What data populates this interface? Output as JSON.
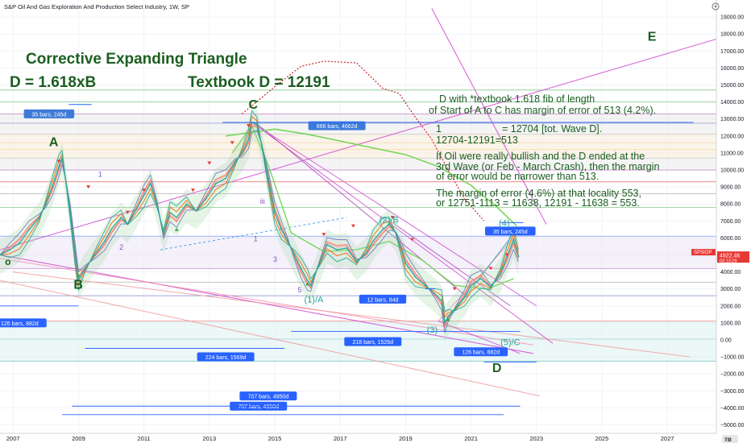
{
  "chart_data": {
    "type": "line",
    "title": "S&P Oil And Gas Exploration And Production Select Industry, 1W, SP",
    "y_axis": {
      "ylim": [
        -5500,
        20000
      ],
      "ticks": [
        -5000,
        -4000,
        -3000,
        -2000,
        -1000,
        0,
        1000,
        2000,
        3000,
        4000,
        5000,
        6000,
        7000,
        8000,
        9000,
        10000,
        11000,
        12000,
        13000,
        14000,
        15000,
        16000,
        17000,
        18000,
        19000
      ],
      "tick_labels": [
        "−5000.00",
        "−4000.00",
        "−3000.00",
        "−2000.00",
        "−1000.00",
        "0.00",
        "1000.00",
        "2000.00",
        "3000.00",
        "4000.00",
        "5000.00",
        "6000.00",
        "7000.00",
        "8000.00",
        "9000.00",
        "10000.00",
        "11000.00",
        "12000.00",
        "13000.00",
        "14000.00",
        "15000.00",
        "16000.00",
        "17000.00",
        "18000.00",
        "19000.00"
      ]
    },
    "x_axis": {
      "xlim": [
        2006.6,
        2028.5
      ],
      "ticks": [
        2007,
        2009,
        2011,
        2013,
        2015,
        2017,
        2019,
        2021,
        2023,
        2025,
        2027
      ],
      "tick_labels": [
        "2007",
        "2009",
        "2011",
        "2013",
        "2015",
        "2017",
        "2019",
        "2021",
        "2023",
        "2025",
        "2027"
      ]
    },
    "grid": true,
    "series": [
      {
        "color": "#26a69a",
        "x": [
          2006.6,
          2006.9,
          2007.2,
          2007.5,
          2007.8,
          2008.0,
          2008.2,
          2008.4,
          2008.5,
          2008.6,
          2008.75,
          2008.9,
          2009.0,
          2009.2,
          2009.5,
          2009.8,
          2010.0,
          2010.3,
          2010.5,
          2010.8,
          2011.0,
          2011.2,
          2011.4,
          2011.6,
          2011.8,
          2012.0,
          2012.3,
          2012.6,
          2012.9,
          2013.2,
          2013.5,
          2013.8,
          2014.0,
          2014.2,
          2014.3,
          2014.45,
          2014.6,
          2014.8,
          2015.0,
          2015.2,
          2015.4,
          2015.6,
          2015.8,
          2016.0,
          2016.1,
          2016.3,
          2016.6,
          2016.9,
          2017.2,
          2017.5,
          2017.8,
          2018.0,
          2018.3,
          2018.5,
          2018.7,
          2018.9,
          2019.0,
          2019.3,
          2019.6,
          2019.9,
          2020.1,
          2020.2,
          2020.3,
          2020.5,
          2020.8,
          2021.0,
          2021.3,
          2021.6,
          2021.9,
          2022.1,
          2022.3,
          2022.45
        ],
        "y": [
          5000,
          5300,
          5700,
          6500,
          7200,
          8000,
          9000,
          10200,
          10700,
          9500,
          7500,
          5000,
          3500,
          4200,
          5000,
          5800,
          6500,
          7200,
          6800,
          7800,
          8500,
          9200,
          8000,
          6200,
          7500,
          7200,
          8000,
          7600,
          8300,
          9200,
          9500,
          10500,
          11000,
          11800,
          12800,
          12700,
          11500,
          9500,
          7500,
          6500,
          5800,
          5000,
          4200,
          3500,
          3200,
          4200,
          5600,
          5300,
          5400,
          4600,
          5100,
          5800,
          6500,
          6800,
          6300,
          5200,
          4500,
          3700,
          3200,
          2700,
          2300,
          1000,
          1400,
          1800,
          2500,
          3200,
          3600,
          3100,
          3900,
          4900,
          5900,
          4922
        ]
      }
    ],
    "current_price": "4922.46",
    "price_countdown": "03:13:29",
    "symbol_tag": "SPSIOP",
    "wave_labels": [
      "o",
      "A",
      "B",
      "C",
      "D",
      "E",
      "1",
      "2",
      "iii",
      "1",
      "3",
      "5",
      "(1)/A",
      "(2)/B",
      "(3)",
      "(4)",
      "(5)/C"
    ],
    "annotations": {
      "title_line": "Corrective Expanding Triangle",
      "left_line": "D = 1.618xB",
      "right_line": "Textbook D = 12191",
      "note1a": "D with *textbook 1.618 fib of length",
      "note1b": "of Start of A to C has margin of error of 513 (4.2%).",
      "note2a_pre": "1",
      "note2a_post": "= 12704 [tot. Wave D].",
      "note2b": "12704-12191=513",
      "note3a": "If Oil were really bullish and the D ended at the",
      "note3b": "3rd Wave (or Feb - March Crash), then the margin",
      "note3c": "of error would be narrower than 513.",
      "note4a": "The margin of error (4.6%) at that locality 553,",
      "note4b": "or 12751-1113 = 11638, 12191 - 11638 = 553."
    },
    "range_labels": [
      "35 bars, 245d",
      "666 bars, 4662d",
      "126 bars, 882d",
      "12 bars, 84d",
      "35 bars, 245d",
      "218 bars, 1526d",
      "224 bars, 1569d",
      "126 bars, 882d",
      "707 bars, 4950d",
      "707 bars, 4950d"
    ],
    "corner_logo": "тв"
  }
}
